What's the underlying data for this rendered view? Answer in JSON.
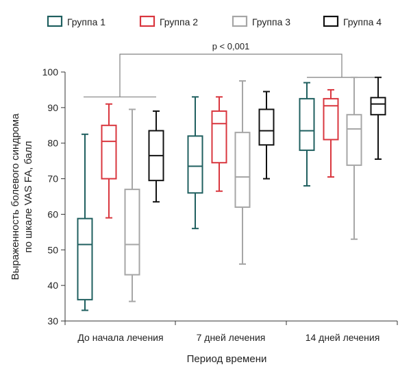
{
  "chart_data": {
    "type": "boxplot",
    "xlabel": "Период времени",
    "ylabel_lines": [
      "Выраженность болевого синдрома",
      "по шкале VAS FA, балл"
    ],
    "ylim": [
      30,
      100
    ],
    "yticks": [
      30,
      40,
      50,
      60,
      70,
      80,
      90,
      100
    ],
    "categories": [
      "До начала лечения",
      "7 дней лечения",
      "14 дней лечения"
    ],
    "legend_position": "top",
    "series": [
      {
        "name": "Группа 1",
        "color": "#1f5f5f",
        "boxes": [
          {
            "min": 33,
            "q1": 36,
            "median": 51.5,
            "q3": 58.8,
            "max": 82.5
          },
          {
            "min": 56,
            "q1": 66,
            "median": 73.5,
            "q3": 82,
            "max": 93
          },
          {
            "min": 68,
            "q1": 78,
            "median": 83.5,
            "q3": 92.5,
            "max": 97
          }
        ]
      },
      {
        "name": "Группа 2",
        "color": "#d9363e",
        "boxes": [
          {
            "min": 59,
            "q1": 70,
            "median": 80.5,
            "q3": 85,
            "max": 91
          },
          {
            "min": 66.5,
            "q1": 74.5,
            "median": 85.5,
            "q3": 89,
            "max": 93
          },
          {
            "min": 70.5,
            "q1": 81,
            "median": 90.5,
            "q3": 92.5,
            "max": 95
          }
        ]
      },
      {
        "name": "Группа 3",
        "color": "#a6a6a6",
        "boxes": [
          {
            "min": 35.5,
            "q1": 43,
            "median": 51.5,
            "q3": 67,
            "max": 89.5
          },
          {
            "min": 46,
            "q1": 62,
            "median": 70.5,
            "q3": 83,
            "max": 97.5
          },
          {
            "min": 53,
            "q1": 73.8,
            "median": 84,
            "q3": 88,
            "max": 98.5
          }
        ]
      },
      {
        "name": "Группа 4",
        "color": "#111111",
        "boxes": [
          {
            "min": 63.5,
            "q1": 69.5,
            "median": 76.5,
            "q3": 83.5,
            "max": 89
          },
          {
            "min": 70,
            "q1": 79.5,
            "median": 83.5,
            "q3": 89.5,
            "max": 94.5
          },
          {
            "min": 75.5,
            "q1": 88,
            "median": 91,
            "q3": 92.8,
            "max": 98.5
          }
        ]
      }
    ],
    "annotation": {
      "text": "p < 0,001",
      "left_line_y": 93,
      "right_line_y": 98.5,
      "bracket_y": 105
    }
  }
}
